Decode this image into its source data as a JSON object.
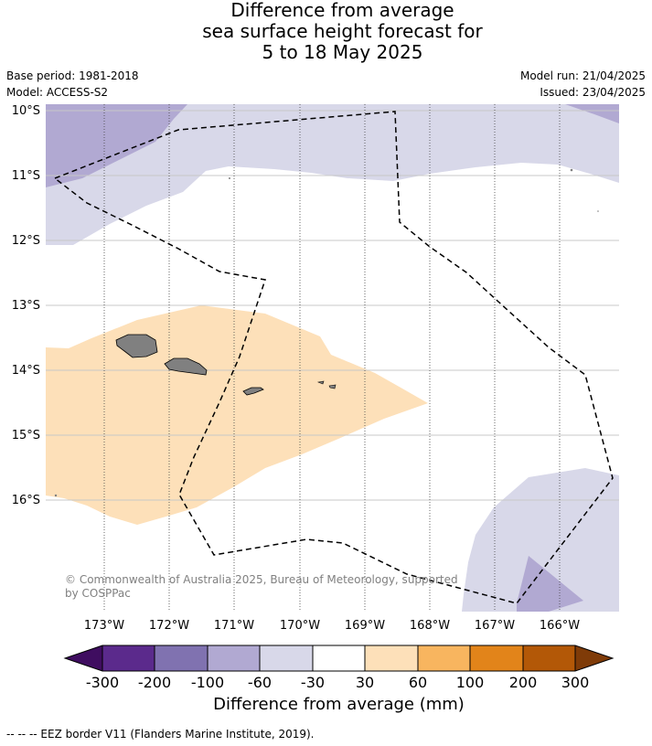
{
  "header": {
    "title_lines": [
      "Difference from average",
      "sea surface height forecast for",
      "5 to 18 May 2025"
    ],
    "base_period": "Base period: 1981-2018",
    "model": "Model: ACCESS-S2",
    "model_run": "Model run: 21/04/2025",
    "issued": "Issued: 23/04/2025"
  },
  "map": {
    "lat_labels": [
      "10°S",
      "11°S",
      "12°S",
      "13°S",
      "14°S",
      "15°S",
      "16°S"
    ],
    "lon_labels": [
      "173°W",
      "172°W",
      "171°W",
      "170°W",
      "169°W",
      "168°W",
      "167°W",
      "166°W"
    ],
    "copyright_line1": "© Commonwealth of Australia 2025, Bureau of Meteorology, supported",
    "copyright_line2": "by COSPPac",
    "colors": {
      "land": "#808080",
      "neg_100_60": "#b1a9d2",
      "neg_60_30": "#d8d8e9",
      "pos_30_60": "#fde0b9",
      "eez_line": "#000000"
    }
  },
  "colorbar": {
    "tick_labels": [
      "-300",
      "-200",
      "-100",
      "-60",
      "-30",
      "30",
      "60",
      "100",
      "200",
      "300"
    ],
    "colors": [
      "#3f0d60",
      "#5b2a8c",
      "#8072b0",
      "#b1a9d2",
      "#d8d8e9",
      "#ffffff",
      "#fde0b9",
      "#f8b55f",
      "#e2841a",
      "#b35807",
      "#7f3b08"
    ],
    "label": "Difference from average (mm)"
  },
  "footer": {
    "legend": "--  --  -- EEZ border V11 (Flanders Marine Institute, 2019)."
  }
}
